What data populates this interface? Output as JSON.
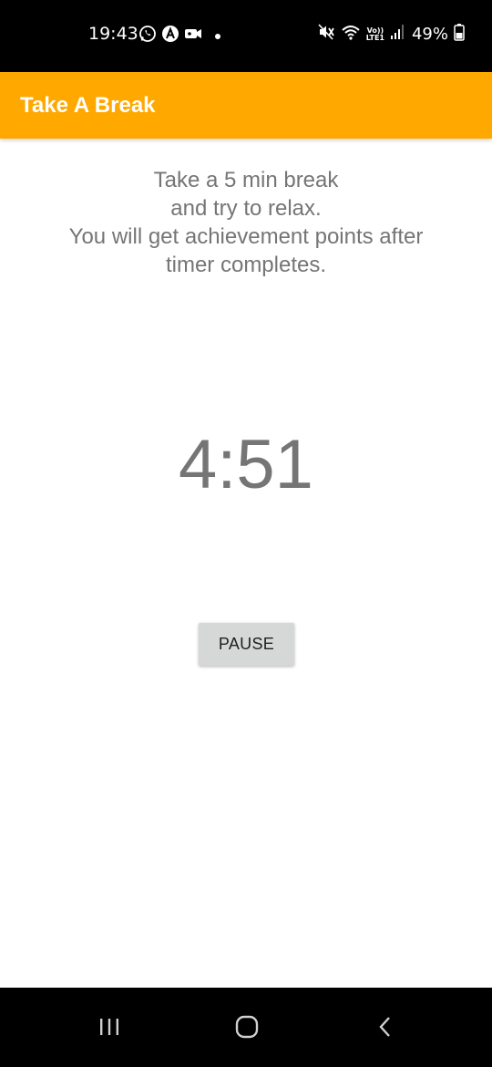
{
  "status_bar": {
    "time": "19:43",
    "battery": "49%",
    "network_label": "Vo))\nLTE1",
    "left_icons": [
      "whatsapp-icon",
      "app-a-icon",
      "video-camera-icon",
      "dot-icon"
    ],
    "right_icons": [
      "mute-vibrate-icon",
      "wifi-icon",
      "volte-icon",
      "signal-icon",
      "battery-icon"
    ]
  },
  "app_bar": {
    "title": "Take A Break",
    "color": "#FFA800"
  },
  "content": {
    "message_lines": [
      "Take a 5 min break",
      "and try to relax.",
      "You will get achievement points after",
      "timer completes."
    ],
    "timer": "4:51",
    "pause_label": "PAUSE"
  },
  "nav_bar": {
    "icons": [
      "recent-apps-icon",
      "home-icon",
      "back-icon"
    ]
  }
}
